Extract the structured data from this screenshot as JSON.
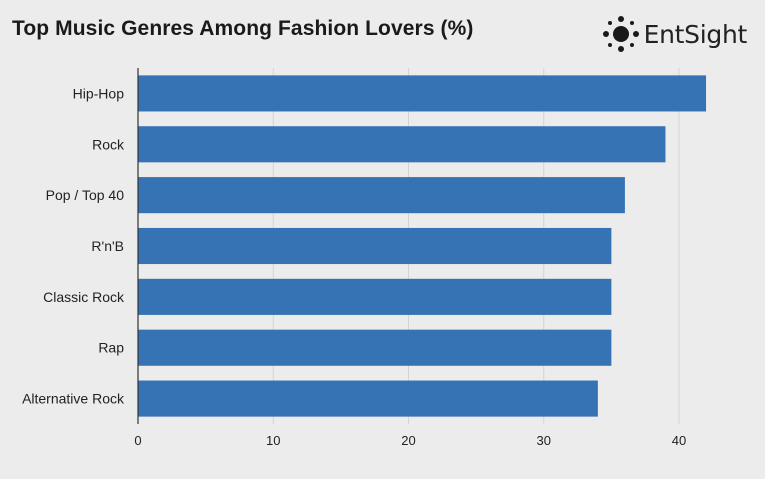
{
  "header": {
    "title": "Top Music Genres Among Fashion Lovers (%)",
    "brand": "EntSight"
  },
  "colors": {
    "bar": "#3573b5",
    "grid": "#d4d4d4",
    "axis": "#333333",
    "background": "#ececec"
  },
  "chart_data": {
    "type": "bar",
    "orientation": "horizontal",
    "title": "Top Music Genres Among Fashion Lovers (%)",
    "categories": [
      "Hip-Hop",
      "Rock",
      "Pop / Top 40",
      "R'n'B",
      "Classic Rock",
      "Rap",
      "Alternative Rock"
    ],
    "values": [
      42,
      39,
      36,
      35,
      35,
      35,
      34
    ],
    "xlim": [
      0,
      44
    ],
    "xticks": [
      0,
      10,
      20,
      30,
      40
    ],
    "grid": true,
    "legend": "none"
  }
}
